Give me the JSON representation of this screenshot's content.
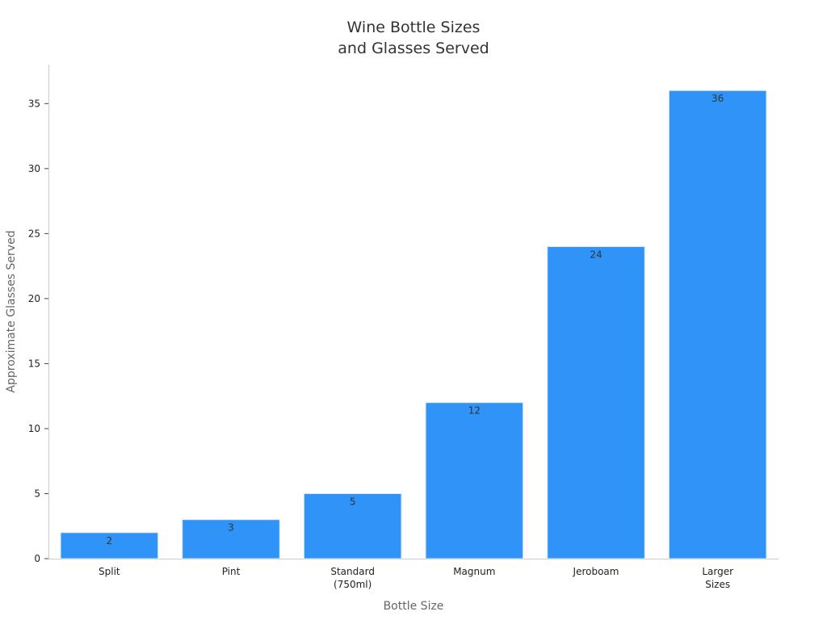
{
  "chart_data": {
    "type": "bar",
    "title_lines": [
      "Wine Bottle Sizes",
      "and Glasses Served"
    ],
    "xlabel": "Bottle Size",
    "ylabel": "Approximate Glasses Served",
    "categories": [
      [
        "Split"
      ],
      [
        "Pint"
      ],
      [
        "Standard",
        "(750ml)"
      ],
      [
        "Magnum"
      ],
      [
        "Jeroboam"
      ],
      [
        "Larger",
        "Sizes"
      ]
    ],
    "values": [
      2,
      3,
      5,
      12,
      24,
      36
    ],
    "data_labels": [
      "2",
      "3",
      "5",
      "12",
      "24",
      "36"
    ],
    "ylim": [
      0,
      38
    ],
    "yticks": [
      0,
      5,
      10,
      15,
      20,
      25,
      30,
      35
    ],
    "bar_color": "#2f93f8",
    "grid": false,
    "legend": "none"
  }
}
